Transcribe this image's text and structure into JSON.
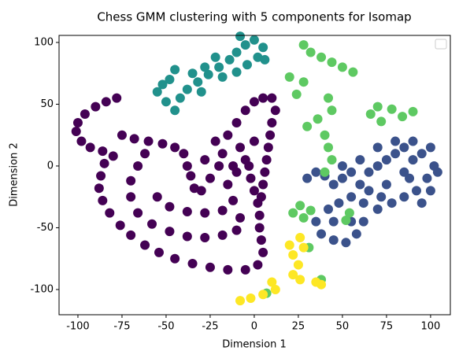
{
  "chart_data": {
    "type": "scatter",
    "title": "Chess GMM clustering with 5 components for Isomap",
    "xlabel": "Dimension 1",
    "ylabel": "Dimension 2",
    "xlim": [
      -110.7,
      111.2
    ],
    "ylim": [
      -120.4,
      105.7
    ],
    "xticks": [
      -100,
      -75,
      -50,
      -25,
      0,
      25,
      50,
      75,
      100
    ],
    "yticks": [
      -100,
      -50,
      0,
      50,
      100
    ],
    "legend": "upper right",
    "series": [
      {
        "color": "#440154",
        "x": [
          -78,
          -84,
          -90,
          -96,
          -100,
          -101,
          -98,
          -93,
          -86,
          -80,
          -85,
          -87,
          -88,
          -86,
          -82,
          -76,
          -70,
          -62,
          -54,
          -45,
          -35,
          -25,
          -15,
          -5,
          2,
          5,
          4,
          3,
          3,
          2,
          0,
          -2,
          -3,
          -75,
          -68,
          -60,
          -52,
          -45,
          -40,
          -38,
          -62,
          -66,
          -70,
          -70,
          -66,
          -58,
          -48,
          -38,
          -28,
          -18,
          -10,
          -8,
          -55,
          -48,
          -38,
          -28,
          -18,
          -12,
          -30,
          -25,
          -20,
          -28,
          -18,
          -22,
          -15,
          -10,
          -5,
          0,
          5,
          -8,
          -12,
          -15,
          -5,
          0,
          -10,
          10,
          12,
          10,
          9,
          8,
          7,
          6,
          5,
          4,
          -36,
          -34
        ],
        "y": [
          55,
          52,
          48,
          42,
          35,
          28,
          20,
          15,
          12,
          8,
          2,
          -8,
          -18,
          -28,
          -38,
          -48,
          -56,
          -64,
          -70,
          -75,
          -79,
          -82,
          -84,
          -84,
          -80,
          -70,
          -60,
          -50,
          -40,
          -30,
          -20,
          -10,
          0,
          25,
          22,
          20,
          18,
          15,
          10,
          0,
          10,
          0,
          -12,
          -25,
          -38,
          -47,
          -53,
          -57,
          -58,
          -56,
          -52,
          -42,
          -25,
          -33,
          -37,
          -38,
          -36,
          -28,
          -20,
          -10,
          0,
          5,
          10,
          20,
          25,
          35,
          45,
          52,
          55,
          15,
          0,
          -15,
          5,
          20,
          -5,
          55,
          45,
          35,
          25,
          15,
          5,
          -5,
          -15,
          -25,
          -8,
          -18
        ]
      },
      {
        "color": "#3b528b",
        "x": [
          30,
          35,
          40,
          45,
          50,
          55,
          60,
          65,
          70,
          75,
          80,
          85,
          90,
          95,
          100,
          102,
          98,
          92,
          85,
          78,
          70,
          62,
          55,
          48,
          42,
          35,
          38,
          45,
          52,
          58,
          55,
          65,
          75,
          85,
          90,
          80,
          70,
          60,
          50,
          45,
          62,
          100,
          95,
          104,
          72,
          88
        ],
        "y": [
          -10,
          -5,
          -8,
          -15,
          -10,
          -5,
          -15,
          -5,
          0,
          5,
          10,
          15,
          20,
          10,
          15,
          0,
          -10,
          -20,
          -25,
          -30,
          -35,
          -30,
          -25,
          -30,
          -35,
          -45,
          -55,
          -60,
          -62,
          -55,
          -45,
          -20,
          -15,
          -5,
          5,
          20,
          15,
          5,
          0,
          -45,
          -45,
          -20,
          -30,
          -5,
          -25,
          -10
        ]
      },
      {
        "color": "#21918c",
        "x": [
          -55,
          -50,
          -45,
          -42,
          -38,
          -32,
          -26,
          -20,
          -14,
          -10,
          -5,
          0,
          5,
          2,
          -4,
          -10,
          -18,
          -28,
          -35,
          -48,
          -52,
          -45,
          -22,
          -30,
          -8,
          6
        ],
        "y": [
          60,
          52,
          45,
          55,
          62,
          68,
          74,
          80,
          86,
          92,
          98,
          102,
          96,
          88,
          82,
          76,
          72,
          80,
          75,
          70,
          66,
          78,
          88,
          60,
          105,
          86
        ]
      },
      {
        "color": "#5ec962",
        "x": [
          28,
          32,
          38,
          44,
          50,
          56,
          20,
          28,
          24,
          42,
          44,
          36,
          30,
          40,
          42,
          44,
          40,
          70,
          78,
          66,
          72,
          84,
          90,
          26,
          22,
          28,
          32,
          31,
          38,
          7,
          52,
          54
        ],
        "y": [
          98,
          92,
          88,
          84,
          80,
          76,
          72,
          68,
          58,
          55,
          45,
          38,
          32,
          25,
          15,
          5,
          -5,
          48,
          46,
          42,
          36,
          40,
          44,
          -32,
          -38,
          -42,
          -36,
          -66,
          -92,
          -103,
          -44,
          -38
        ]
      },
      {
        "color": "#fde725",
        "x": [
          26,
          28,
          22,
          25,
          22,
          26,
          10,
          12,
          5,
          -2,
          -8,
          35,
          38,
          20
        ],
        "y": [
          -58,
          -66,
          -72,
          -80,
          -88,
          -92,
          -94,
          -100,
          -104,
          -107,
          -109,
          -94,
          -96,
          -64
        ]
      }
    ]
  }
}
